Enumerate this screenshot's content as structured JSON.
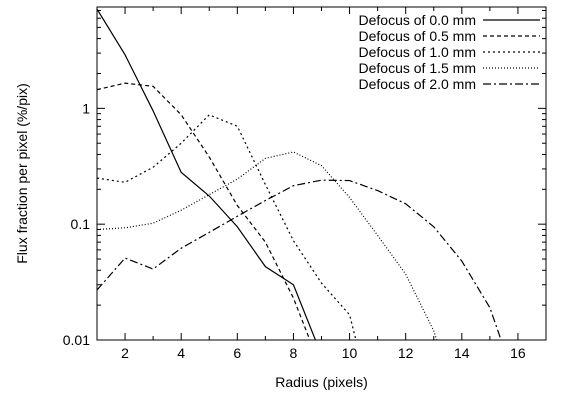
{
  "chart_data": {
    "type": "line",
    "title": "",
    "xlabel": "Radius (pixels)",
    "ylabel": "Flux fraction per pixel (%/pix)",
    "xlim": [
      1,
      17
    ],
    "ylim": [
      0.01,
      7.5
    ],
    "yscale": "log",
    "grid": false,
    "legend_position": "top-right",
    "x_ticks": [
      2,
      4,
      6,
      8,
      10,
      12,
      14,
      16
    ],
    "x_tick_labels": [
      "2",
      "4",
      "6",
      "8",
      "10",
      "12",
      "14",
      "16"
    ],
    "y_ticks": [
      0.01,
      0.1,
      1
    ],
    "y_tick_labels": [
      "0.01",
      "0.1",
      "1"
    ],
    "series": [
      {
        "name": "Defocus of 0.0 mm",
        "dash": "solid",
        "points": [
          [
            1,
            7.2
          ],
          [
            2,
            2.9
          ],
          [
            3,
            0.95
          ],
          [
            4,
            0.28
          ],
          [
            5,
            0.175
          ],
          [
            6,
            0.095
          ],
          [
            7,
            0.043
          ],
          [
            8,
            0.03
          ],
          [
            8.9,
            0.0085
          ]
        ]
      },
      {
        "name": "Defocus of 0.5 mm",
        "dash": "dashed",
        "points": [
          [
            1,
            1.45
          ],
          [
            2,
            1.65
          ],
          [
            3,
            1.55
          ],
          [
            4,
            0.88
          ],
          [
            5,
            0.38
          ],
          [
            6,
            0.145
          ],
          [
            7,
            0.07
          ],
          [
            8,
            0.023
          ],
          [
            8.7,
            0.0085
          ]
        ]
      },
      {
        "name": "Defocus of 1.0 mm",
        "dash": "dotted-coarse",
        "points": [
          [
            1,
            0.25
          ],
          [
            2,
            0.23
          ],
          [
            3,
            0.31
          ],
          [
            4,
            0.5
          ],
          [
            5,
            0.88
          ],
          [
            6,
            0.7
          ],
          [
            7,
            0.22
          ],
          [
            8,
            0.072
          ],
          [
            9,
            0.031
          ],
          [
            10,
            0.0165
          ],
          [
            10.3,
            0.0085
          ]
        ]
      },
      {
        "name": "Defocus of 1.5 mm",
        "dash": "dotted-fine",
        "points": [
          [
            1,
            0.09
          ],
          [
            2,
            0.093
          ],
          [
            3,
            0.102
          ],
          [
            4,
            0.132
          ],
          [
            5,
            0.18
          ],
          [
            6,
            0.245
          ],
          [
            7,
            0.37
          ],
          [
            8,
            0.42
          ],
          [
            9,
            0.32
          ],
          [
            10,
            0.17
          ],
          [
            11,
            0.08
          ],
          [
            12,
            0.037
          ],
          [
            13,
            0.012
          ],
          [
            13.2,
            0.0085
          ]
        ]
      },
      {
        "name": "Defocus of 2.0 mm",
        "dash": "dash-dot",
        "points": [
          [
            1,
            0.027
          ],
          [
            2,
            0.051
          ],
          [
            3,
            0.041
          ],
          [
            4,
            0.062
          ],
          [
            5,
            0.085
          ],
          [
            6,
            0.117
          ],
          [
            7,
            0.16
          ],
          [
            8,
            0.215
          ],
          [
            9,
            0.24
          ],
          [
            10,
            0.238
          ],
          [
            11,
            0.195
          ],
          [
            12,
            0.15
          ],
          [
            13,
            0.095
          ],
          [
            14,
            0.048
          ],
          [
            15,
            0.019
          ],
          [
            15.5,
            0.0085
          ]
        ]
      }
    ]
  }
}
